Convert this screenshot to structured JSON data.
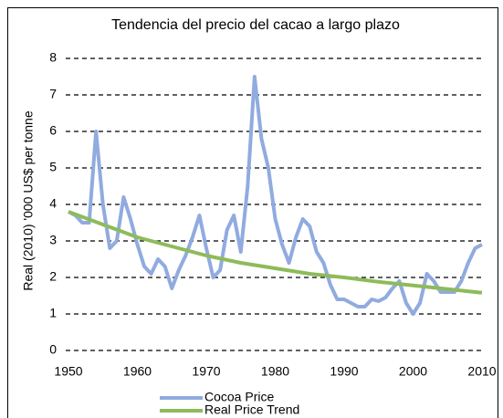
{
  "chart_data": {
    "type": "line",
    "title": "Tendencia del precio del cacao a largo plazo",
    "y_label": "Real (2010) '000 US$ per tonne",
    "xlim": [
      1950,
      2010
    ],
    "xticks": [
      1950,
      1960,
      1970,
      1980,
      1990,
      2000,
      2010
    ],
    "ylim": [
      0,
      8
    ],
    "yticks": [
      0,
      1,
      2,
      3,
      4,
      5,
      6,
      7,
      8
    ],
    "grid": true,
    "legend": "bottom",
    "series": [
      {
        "name": "Cocoa Price",
        "color": "#91abe0",
        "x": [
          1950,
          1951,
          1952,
          1953,
          1954,
          1955,
          1956,
          1957,
          1958,
          1959,
          1960,
          1961,
          1962,
          1963,
          1964,
          1965,
          1966,
          1967,
          1968,
          1969,
          1970,
          1971,
          1972,
          1973,
          1974,
          1975,
          1976,
          1977,
          1978,
          1979,
          1980,
          1981,
          1982,
          1983,
          1984,
          1985,
          1986,
          1987,
          1988,
          1989,
          1990,
          1991,
          1992,
          1993,
          1994,
          1995,
          1996,
          1997,
          1998,
          1999,
          2000,
          2001,
          2002,
          2003,
          2004,
          2005,
          2006,
          2007,
          2008,
          2009,
          2010
        ],
        "values": [
          3.8,
          3.7,
          3.5,
          3.5,
          6.0,
          4.0,
          2.8,
          3.0,
          4.2,
          3.6,
          2.9,
          2.3,
          2.1,
          2.5,
          2.3,
          1.7,
          2.2,
          2.6,
          3.1,
          3.7,
          2.8,
          2.0,
          2.2,
          3.3,
          3.7,
          2.7,
          4.5,
          7.5,
          5.8,
          5.0,
          3.6,
          2.9,
          2.4,
          3.1,
          3.6,
          3.4,
          2.7,
          2.4,
          1.8,
          1.4,
          1.4,
          1.3,
          1.2,
          1.2,
          1.4,
          1.35,
          1.45,
          1.7,
          1.9,
          1.3,
          1.0,
          1.3,
          2.1,
          1.9,
          1.6,
          1.6,
          1.6,
          1.9,
          2.4,
          2.8,
          2.9
        ]
      },
      {
        "name": "Real Price Trend",
        "color": "#8ebb5a",
        "x": [
          1950,
          1955,
          1960,
          1965,
          1970,
          1975,
          1980,
          1985,
          1990,
          1995,
          2000,
          2005,
          2010
        ],
        "values": [
          3.8,
          3.45,
          3.1,
          2.85,
          2.6,
          2.4,
          2.25,
          2.1,
          2.0,
          1.88,
          1.78,
          1.68,
          1.58
        ]
      }
    ]
  }
}
